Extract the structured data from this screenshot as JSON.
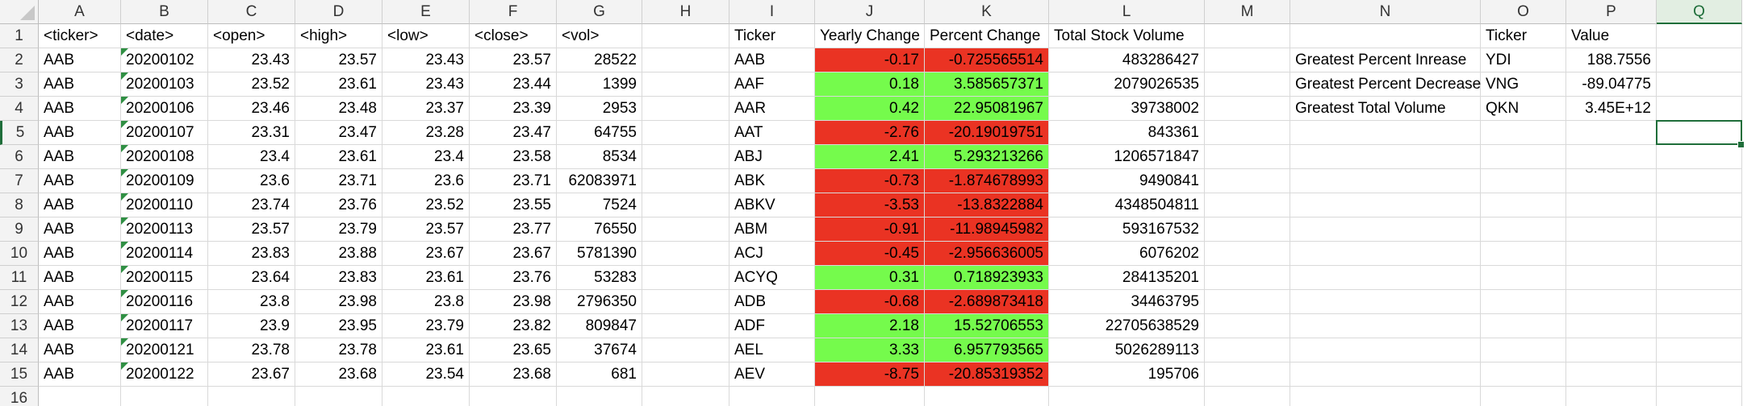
{
  "columns": [
    "A",
    "B",
    "C",
    "D",
    "E",
    "F",
    "G",
    "H",
    "I",
    "J",
    "K",
    "L",
    "M",
    "N",
    "O",
    "P",
    "Q"
  ],
  "selected_column": "Q",
  "selected_cell": "Q5",
  "header_row": {
    "A": "<ticker>",
    "B": "<date>",
    "C": "<open>",
    "D": "<high>",
    "E": "<low>",
    "F": "<close>",
    "G": "<vol>",
    "I": "Ticker",
    "J": "Yearly Change",
    "K": "Percent Change",
    "L": "Total Stock Volume",
    "O": "Ticker",
    "P": "Value"
  },
  "raw_rows": [
    [
      "AAB",
      "20200102",
      "23.43",
      "23.57",
      "23.43",
      "23.57",
      "28522"
    ],
    [
      "AAB",
      "20200103",
      "23.52",
      "23.61",
      "23.43",
      "23.44",
      "1399"
    ],
    [
      "AAB",
      "20200106",
      "23.46",
      "23.48",
      "23.37",
      "23.39",
      "2953"
    ],
    [
      "AAB",
      "20200107",
      "23.31",
      "23.47",
      "23.28",
      "23.47",
      "64755"
    ],
    [
      "AAB",
      "20200108",
      "23.4",
      "23.61",
      "23.4",
      "23.58",
      "8534"
    ],
    [
      "AAB",
      "20200109",
      "23.6",
      "23.71",
      "23.6",
      "23.71",
      "62083971"
    ],
    [
      "AAB",
      "20200110",
      "23.74",
      "23.76",
      "23.52",
      "23.55",
      "7524"
    ],
    [
      "AAB",
      "20200113",
      "23.57",
      "23.79",
      "23.57",
      "23.77",
      "76550"
    ],
    [
      "AAB",
      "20200114",
      "23.83",
      "23.88",
      "23.67",
      "23.67",
      "5781390"
    ],
    [
      "AAB",
      "20200115",
      "23.64",
      "23.83",
      "23.61",
      "23.76",
      "53283"
    ],
    [
      "AAB",
      "20200116",
      "23.8",
      "23.98",
      "23.8",
      "23.98",
      "2796350"
    ],
    [
      "AAB",
      "20200117",
      "23.9",
      "23.95",
      "23.79",
      "23.82",
      "809847"
    ],
    [
      "AAB",
      "20200121",
      "23.78",
      "23.78",
      "23.61",
      "23.65",
      "37674"
    ],
    [
      "AAB",
      "20200122",
      "23.67",
      "23.68",
      "23.54",
      "23.68",
      "681"
    ]
  ],
  "summary_rows": [
    {
      "ticker": "AAB",
      "yearly_change": "-0.17",
      "percent_change": "-0.725565514",
      "total_volume": "483286427",
      "status": "negative"
    },
    {
      "ticker": "AAF",
      "yearly_change": "0.18",
      "percent_change": "3.585657371",
      "total_volume": "2079026535",
      "status": "positive"
    },
    {
      "ticker": "AAR",
      "yearly_change": "0.42",
      "percent_change": "22.95081967",
      "total_volume": "39738002",
      "status": "positive"
    },
    {
      "ticker": "AAT",
      "yearly_change": "-2.76",
      "percent_change": "-20.19019751",
      "total_volume": "843361",
      "status": "negative"
    },
    {
      "ticker": "ABJ",
      "yearly_change": "2.41",
      "percent_change": "5.293213266",
      "total_volume": "1206571847",
      "status": "positive"
    },
    {
      "ticker": "ABK",
      "yearly_change": "-0.73",
      "percent_change": "-1.874678993",
      "total_volume": "9490841",
      "status": "negative"
    },
    {
      "ticker": "ABKV",
      "yearly_change": "-3.53",
      "percent_change": "-13.8322884",
      "total_volume": "4348504811",
      "status": "negative"
    },
    {
      "ticker": "ABM",
      "yearly_change": "-0.91",
      "percent_change": "-11.98945982",
      "total_volume": "593167532",
      "status": "negative"
    },
    {
      "ticker": "ACJ",
      "yearly_change": "-0.45",
      "percent_change": "-2.956636005",
      "total_volume": "6076202",
      "status": "negative"
    },
    {
      "ticker": "ACYQ",
      "yearly_change": "0.31",
      "percent_change": "0.718923933",
      "total_volume": "284135201",
      "status": "positive"
    },
    {
      "ticker": "ADB",
      "yearly_change": "-0.68",
      "percent_change": "-2.689873418",
      "total_volume": "34463795",
      "status": "negative"
    },
    {
      "ticker": "ADF",
      "yearly_change": "2.18",
      "percent_change": "15.52706553",
      "total_volume": "22705638529",
      "status": "positive"
    },
    {
      "ticker": "AEL",
      "yearly_change": "3.33",
      "percent_change": "6.957793565",
      "total_volume": "5026289113",
      "status": "positive"
    },
    {
      "ticker": "AEV",
      "yearly_change": "-8.75",
      "percent_change": "-20.85319352",
      "total_volume": "195706",
      "status": "negative"
    }
  ],
  "greatest": [
    {
      "label": "Greatest Percent Inrease",
      "ticker": "YDI",
      "value": "188.7556"
    },
    {
      "label": "Greatest Percent Decrease",
      "ticker": "VNG",
      "value": "-89.04775"
    },
    {
      "label": "Greatest Total Volume",
      "ticker": "QKN",
      "value": "3.45E+12"
    }
  ],
  "colors": {
    "negative_fill": "#ea3323",
    "positive_fill": "#75fb4c",
    "selection_green": "#1f6e3a",
    "comment_flag": "#2f8f43"
  }
}
